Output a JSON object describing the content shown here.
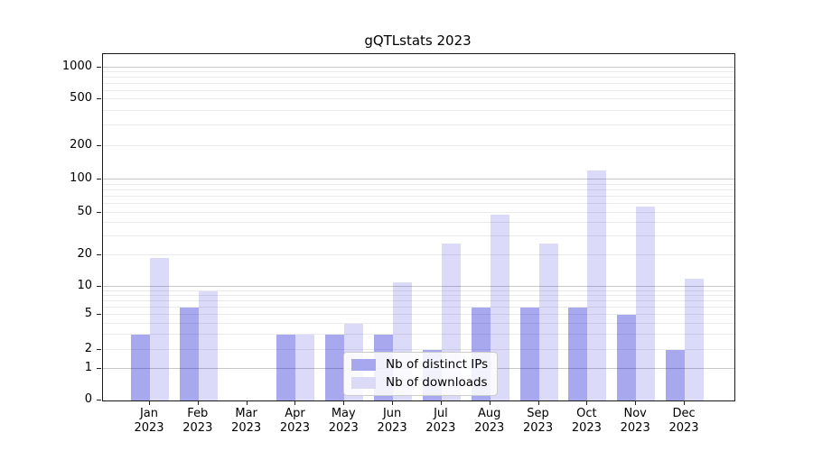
{
  "title": "gQTLstats 2023",
  "legend": {
    "items": [
      {
        "label": "Nb of distinct IPs",
        "color": "#a7a7f0",
        "fill": "rgba(5,5,210,0.35)"
      },
      {
        "label": "Nb of downloads",
        "color": "#dbdbf8",
        "fill": "rgba(15,15,215,0.15)"
      }
    ]
  },
  "chart_data": {
    "type": "bar",
    "title": "gQTLstats 2023",
    "categories": [
      "Jan",
      "Feb",
      "Mar",
      "Apr",
      "May",
      "Jun",
      "Jul",
      "Aug",
      "Sep",
      "Oct",
      "Nov",
      "Dec"
    ],
    "year_label": "2023",
    "series": [
      {
        "name": "Nb of distinct IPs",
        "color": "#a7a7f0",
        "values": [
          3,
          6,
          0,
          3,
          3,
          3,
          2,
          6,
          6,
          6,
          5,
          2
        ]
      },
      {
        "name": "Nb of downloads",
        "color": "#dbdbf8",
        "values": [
          19,
          9,
          0,
          3,
          4,
          11,
          26,
          48,
          26,
          120,
          57,
          12
        ]
      }
    ],
    "yticks": [
      0,
      1,
      2,
      5,
      10,
      20,
      50,
      100,
      200,
      500,
      1000
    ],
    "yscale": "asinh (log-like above 1, linear 0-1)",
    "ylim": [
      0,
      1400
    ],
    "grid": true,
    "legend_position": "lower center inside plot"
  }
}
